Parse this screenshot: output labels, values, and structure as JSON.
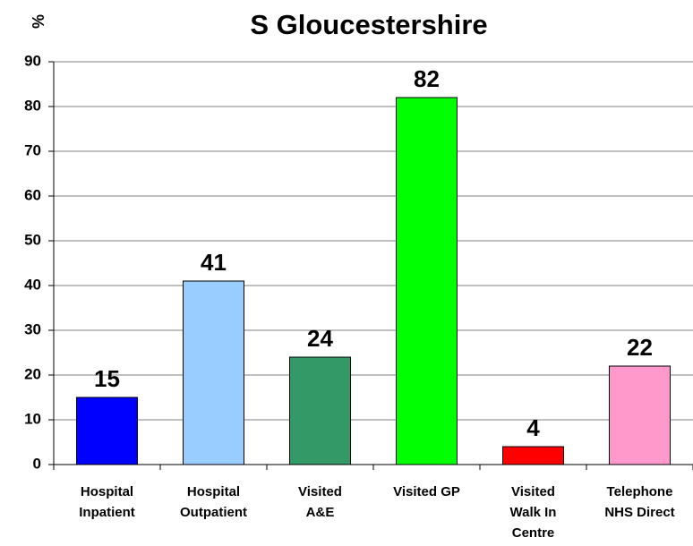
{
  "chart_data": {
    "type": "bar",
    "title": "S Gloucestershire",
    "y_label": "%",
    "categories": [
      "Hospital\nInpatient",
      "Hospital\nOutpatient",
      "Visited\nA&E",
      "Visited GP",
      "Visited\nWalk In\nCentre",
      "Telephone\nNHS Direct"
    ],
    "values": [
      15,
      41,
      24,
      82,
      4,
      22
    ],
    "colors": [
      "#0000ff",
      "#99ccff",
      "#339966",
      "#00ff00",
      "#ff0000",
      "#ff99cc"
    ],
    "ylim": [
      0,
      90
    ],
    "yticks": [
      0,
      10,
      20,
      30,
      40,
      50,
      60,
      70,
      80,
      90
    ],
    "grid": true
  }
}
